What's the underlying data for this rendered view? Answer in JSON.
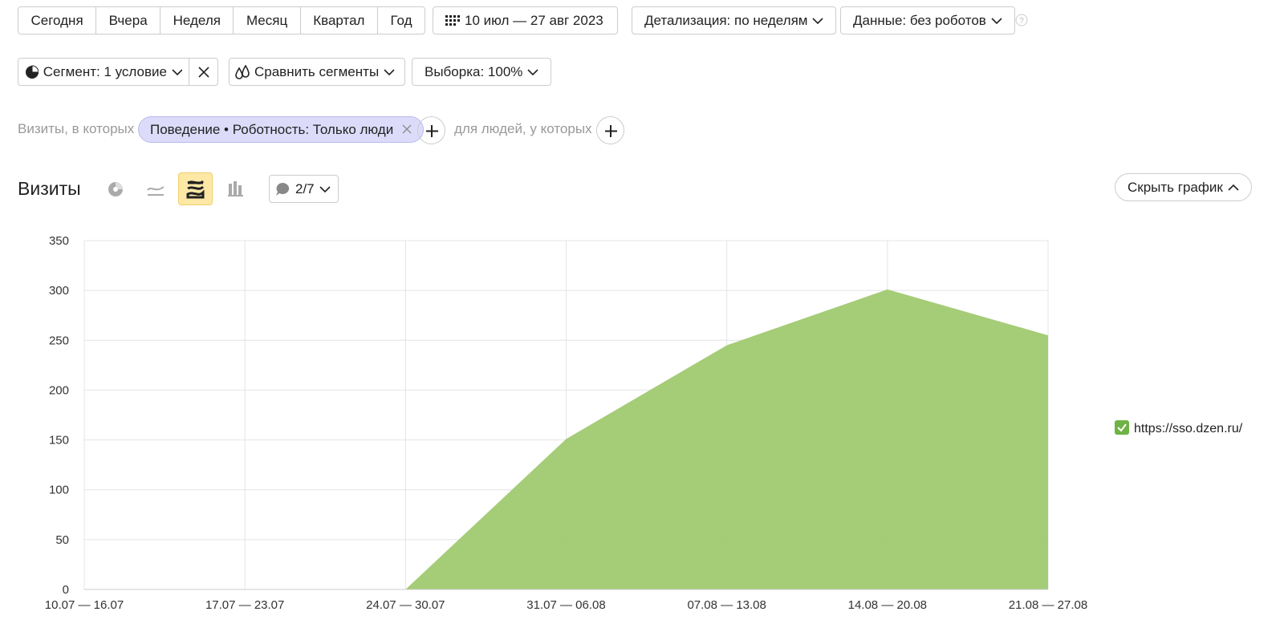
{
  "toolbar": {
    "periods": [
      "Сегодня",
      "Вчера",
      "Неделя",
      "Месяц",
      "Квартал",
      "Год"
    ],
    "date_range": "10 июл — 27 авг 2023",
    "detail": "Детализация: по неделям",
    "data_filter": "Данные: без роботов"
  },
  "segment_bar": {
    "segment": "Сегмент: 1 условие",
    "compare": "Сравнить сегменты",
    "sample": "Выборка: 100%"
  },
  "filter_row": {
    "prefix": "Визиты, в которых",
    "chip": "Поведение • Роботность: Только люди",
    "people": "для людей, у которых"
  },
  "chart_header": {
    "title": "Визиты",
    "comments": "2/7",
    "hide": "Скрыть график"
  },
  "chart_data": {
    "type": "area",
    "categories": [
      "10.07 — 16.07",
      "17.07 — 23.07",
      "24.07 — 30.07",
      "31.07 — 06.08",
      "07.08 — 13.08",
      "14.08 — 20.08",
      "21.08 — 27.08"
    ],
    "series": [
      {
        "name": "https://sso.dzen.ru/",
        "color": "#a0c970",
        "values": [
          0,
          0,
          0,
          151,
          245,
          301,
          255
        ]
      }
    ],
    "ylim": [
      0,
      350
    ],
    "yticks": [
      0,
      50,
      100,
      150,
      200,
      250,
      300,
      350
    ],
    "grid": true,
    "legend": "right"
  }
}
